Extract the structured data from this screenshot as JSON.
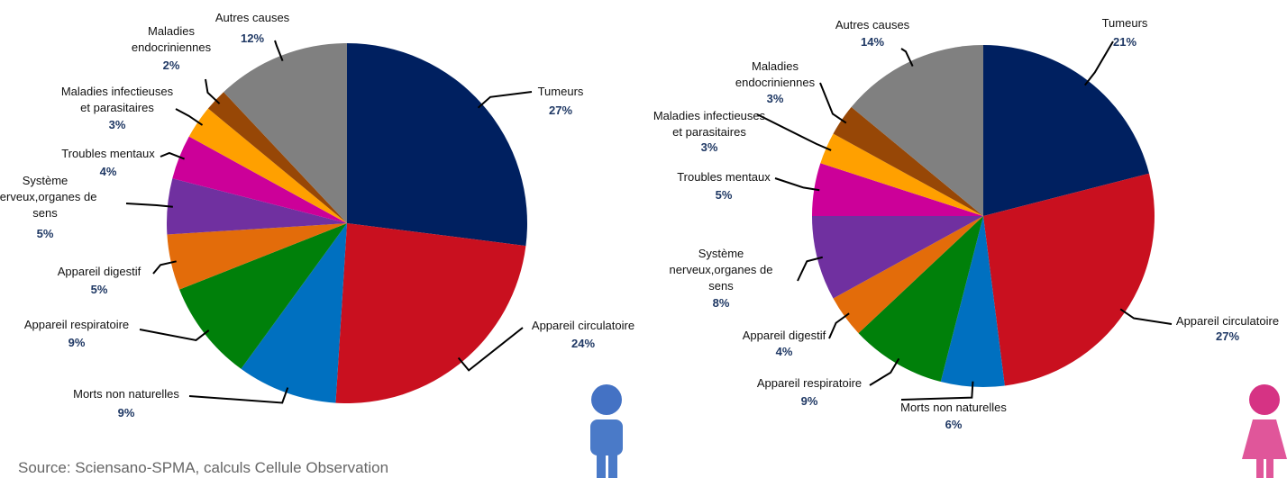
{
  "source": "Source: Sciensano-SPMA, calculs Cellule Observation",
  "chart_data": [
    {
      "type": "pie",
      "categories": [
        "Tumeurs",
        "Appareil circulatoire",
        "Morts non naturelles",
        "Appareil respiratoire",
        "Appareil digestif",
        "Système\nnerveux,organes de\nsens",
        "Troubles mentaux",
        "Maladies infectieuses\net parasitaires",
        "Maladies\nendocriniennes",
        "Autres causes"
      ],
      "values": [
        27,
        24,
        9,
        9,
        5,
        5,
        4,
        3,
        2,
        12
      ],
      "value_labels": [
        "27%",
        "24%",
        "9%",
        "9%",
        "5%",
        "5%",
        "4%",
        "3%",
        "2%",
        "12%"
      ],
      "colors": [
        "#002060",
        "#c9101f",
        "#0070c0",
        "#00800a",
        "#e36c0a",
        "#7030a0",
        "#cc0099",
        "#ffa000",
        "#974706",
        "#808080"
      ]
    },
    {
      "type": "pie",
      "categories": [
        "Tumeurs",
        "Appareil circulatoire",
        "Morts non naturelles",
        "Appareil respiratoire",
        "Appareil digestif",
        "Système\nnerveux,organes de\nsens",
        "Troubles mentaux",
        "Maladies infectieuses\net parasitaires",
        "Maladies\nendocriniennes",
        "Autres causes"
      ],
      "values": [
        21,
        27,
        6,
        9,
        4,
        8,
        5,
        3,
        3,
        14
      ],
      "value_labels": [
        "21%",
        "27%",
        "6%",
        "9%",
        "4%",
        "8%",
        "5%",
        "3%",
        "3%",
        "14%"
      ],
      "colors": [
        "#002060",
        "#c9101f",
        "#0070c0",
        "#00800a",
        "#e36c0a",
        "#7030a0",
        "#cc0099",
        "#ffa000",
        "#974706",
        "#808080"
      ]
    }
  ]
}
